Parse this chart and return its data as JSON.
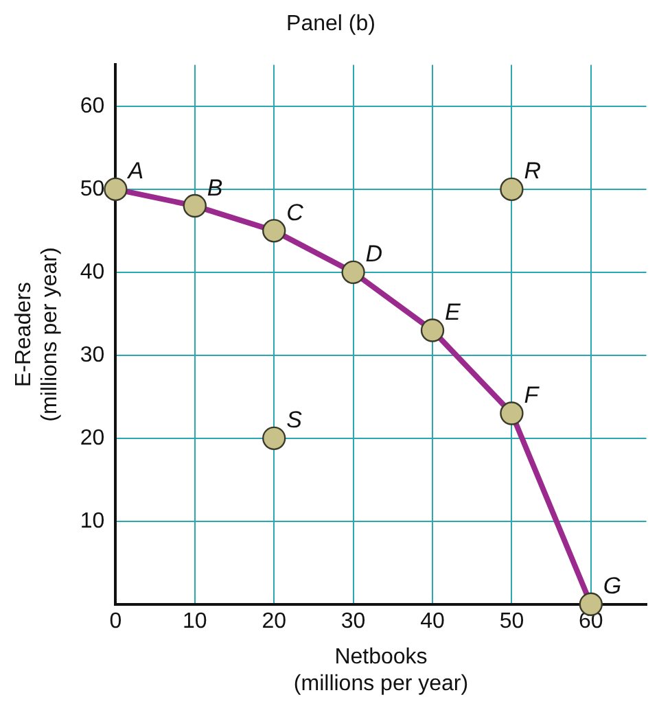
{
  "chart_data": {
    "type": "line",
    "title": "Panel (b)",
    "xlabel": "Netbooks\n(millions per year)",
    "ylabel": "E-Readers\n(millions per year)",
    "series": [
      {
        "color": "#9b2a8e",
        "x": [
          0,
          10,
          20,
          30,
          40,
          50,
          60
        ],
        "values": [
          50,
          48,
          45,
          40,
          33,
          23,
          0
        ]
      },
      {
        "type": "scatter",
        "color": "#c8c28a",
        "x": [
          50,
          20
        ],
        "values": [
          50,
          20
        ]
      }
    ],
    "xlim": [
      0,
      67
    ],
    "xticks": [
      0,
      10,
      20,
      30,
      40,
      50,
      60
    ],
    "ylim": [
      0,
      65
    ],
    "yticks": [
      {
        "value": 0,
        "label": null
      },
      10,
      20,
      30,
      40,
      50,
      60
    ],
    "grid": true,
    "legend": false,
    "marker": "circle",
    "line_style": "solid",
    "annotations": [
      {
        "text": "A",
        "x": 0,
        "y": 50
      },
      {
        "text": "B",
        "x": 10,
        "y": 48
      },
      {
        "text": "C",
        "x": 20,
        "y": 45
      },
      {
        "text": "D",
        "x": 30,
        "y": 40
      },
      {
        "text": "E",
        "x": 40,
        "y": 33
      },
      {
        "text": "F",
        "x": 50,
        "y": 23
      },
      {
        "text": "G",
        "x": 60,
        "y": 0
      },
      {
        "text": "R",
        "x": 50,
        "y": 50
      },
      {
        "text": "S",
        "x": 20,
        "y": 20
      }
    ]
  }
}
